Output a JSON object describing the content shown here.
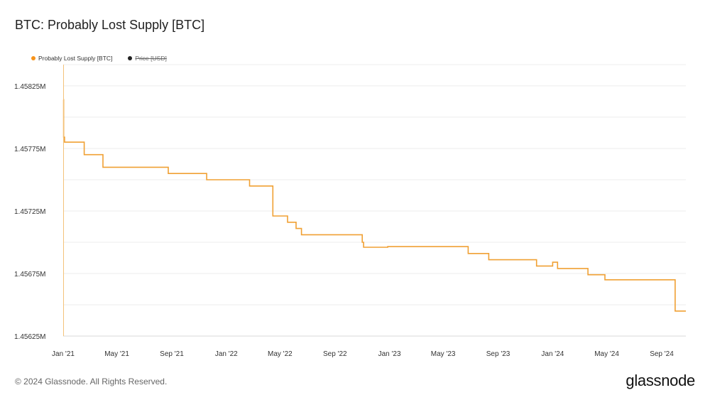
{
  "title": "BTC: Probably Lost Supply [BTC]",
  "legend": [
    {
      "label": "Probably Lost Supply [BTC]",
      "color": "#f7931a",
      "active": true
    },
    {
      "label": "Price [USD]",
      "color": "#222222",
      "active": false
    }
  ],
  "footer": {
    "copyright": "© 2024 Glassnode. All Rights Reserved.",
    "brand": "glassnode"
  },
  "chart_data": {
    "type": "line",
    "title": "BTC: Probably Lost Supply [BTC]",
    "xlabel": "",
    "ylabel": "",
    "grid": true,
    "legend_position": "top-left",
    "line_color": "#f0a033",
    "ylim": [
      1456250,
      1458420
    ],
    "yticks": [
      {
        "value": 1456250,
        "label": "1.45625M"
      },
      {
        "value": 1456750,
        "label": "1.45675M"
      },
      {
        "value": 1457250,
        "label": "1.45725M"
      },
      {
        "value": 1457750,
        "label": "1.45775M"
      },
      {
        "value": 1458250,
        "label": "1.45825M"
      }
    ],
    "ygrid": [
      1456500,
      1456750,
      1457000,
      1457250,
      1457500,
      1457750,
      1458000,
      1458250,
      1458420
    ],
    "xlim": [
      "2021-01-01",
      "2024-10-25"
    ],
    "xticks": [
      {
        "date": "2021-01-01",
        "label": "Jan '21"
      },
      {
        "date": "2021-05-01",
        "label": "May '21"
      },
      {
        "date": "2021-09-01",
        "label": "Sep '21"
      },
      {
        "date": "2022-01-01",
        "label": "Jan '22"
      },
      {
        "date": "2022-05-01",
        "label": "May '22"
      },
      {
        "date": "2022-09-01",
        "label": "Sep '22"
      },
      {
        "date": "2023-01-01",
        "label": "Jan '23"
      },
      {
        "date": "2023-05-01",
        "label": "May '23"
      },
      {
        "date": "2023-09-01",
        "label": "Sep '23"
      },
      {
        "date": "2024-01-01",
        "label": "Jan '24"
      },
      {
        "date": "2024-05-01",
        "label": "May '24"
      },
      {
        "date": "2024-09-01",
        "label": "Sep '24"
      }
    ],
    "series": [
      {
        "name": "Probably Lost Supply [BTC]",
        "step": true,
        "points": [
          [
            "2021-01-01",
            1458140
          ],
          [
            "2021-01-02",
            1457840
          ],
          [
            "2021-01-04",
            1457800
          ],
          [
            "2021-02-17",
            1457700
          ],
          [
            "2021-03-31",
            1457600
          ],
          [
            "2021-08-24",
            1457550
          ],
          [
            "2021-11-18",
            1457500
          ],
          [
            "2022-02-22",
            1457450
          ],
          [
            "2022-04-15",
            1457210
          ],
          [
            "2022-05-18",
            1457160
          ],
          [
            "2022-06-06",
            1457110
          ],
          [
            "2022-06-18",
            1457060
          ],
          [
            "2022-11-01",
            1457000
          ],
          [
            "2022-11-04",
            1456960
          ],
          [
            "2022-12-28",
            1456965
          ],
          [
            "2023-06-26",
            1456910
          ],
          [
            "2023-08-11",
            1456860
          ],
          [
            "2023-11-26",
            1456810
          ],
          [
            "2024-01-01",
            1456840
          ],
          [
            "2024-01-12",
            1456790
          ],
          [
            "2024-03-20",
            1456740
          ],
          [
            "2024-04-27",
            1456700
          ],
          [
            "2024-10-01",
            1456450
          ],
          [
            "2024-10-25",
            1456450
          ]
        ]
      }
    ]
  }
}
